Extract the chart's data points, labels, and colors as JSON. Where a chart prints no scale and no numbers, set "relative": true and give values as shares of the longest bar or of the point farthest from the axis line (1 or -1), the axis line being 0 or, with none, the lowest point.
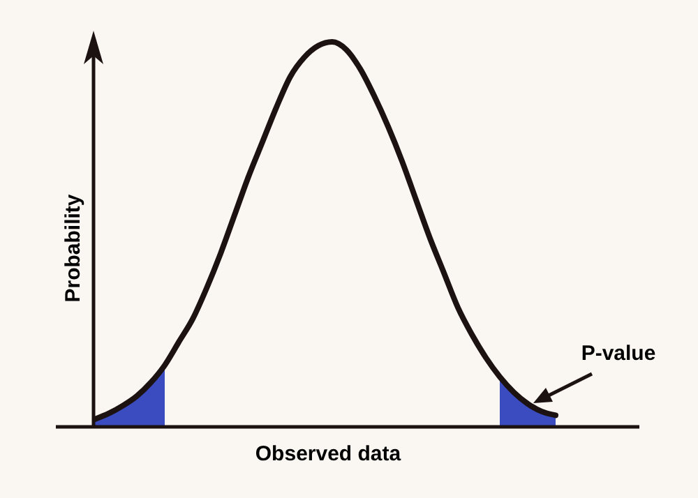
{
  "chart_data": {
    "type": "line",
    "relative": true,
    "xlabel": "Observed data",
    "ylabel": "Probability",
    "annotations": [
      "P-value"
    ],
    "categories": [
      null,
      null,
      null,
      null,
      null,
      null,
      null,
      null,
      null,
      null,
      null,
      null,
      null,
      null,
      null,
      null,
      null,
      null,
      null,
      null,
      null,
      null,
      null,
      null,
      null,
      null,
      null,
      null,
      null,
      null,
      null,
      null,
      null,
      null
    ],
    "series": [
      {
        "type": "area",
        "color": "#3a4cc0",
        "values": [
          0.02,
          0.035,
          0.055,
          0.08,
          0.115,
          0.16,
          null,
          null,
          null,
          null,
          null,
          null,
          null,
          null,
          null,
          null,
          null,
          null,
          null,
          null,
          null,
          null,
          null,
          null,
          null,
          null,
          null,
          null,
          null,
          null,
          null,
          null,
          null,
          null
        ]
      },
      {
        "type": "area",
        "color": "#3a4cc0",
        "values": [
          null,
          null,
          null,
          null,
          null,
          null,
          null,
          null,
          null,
          null,
          null,
          null,
          null,
          null,
          null,
          null,
          null,
          null,
          null,
          null,
          null,
          null,
          null,
          null,
          null,
          null,
          null,
          null,
          null,
          0.13,
          0.09,
          0.06,
          0.04,
          0.03
        ]
      },
      {
        "color": "#1c1212",
        "values": [
          0.02,
          0.035,
          0.055,
          0.08,
          0.115,
          0.16,
          0.22,
          0.28,
          0.36,
          0.45,
          0.55,
          0.65,
          0.74,
          0.83,
          0.91,
          0.96,
          0.99,
          1,
          0.98,
          0.93,
          0.86,
          0.78,
          0.69,
          0.59,
          0.49,
          0.4,
          0.31,
          0.24,
          0.18,
          0.13,
          0.09,
          0.06,
          0.04,
          0.03
        ]
      }
    ]
  }
}
